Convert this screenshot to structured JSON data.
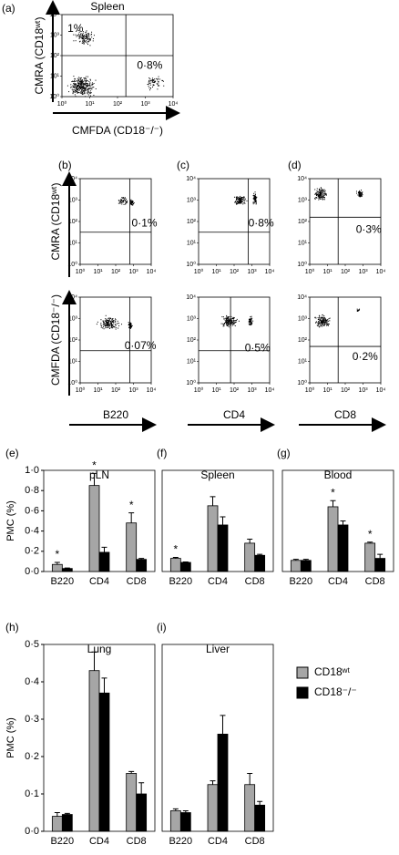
{
  "chart_data": [
    {
      "type": "flow",
      "label": "(a)",
      "title": "Spleen",
      "xlabel": "CMFDA (CD18⁻/⁻)",
      "ylabel": "CMRA (CD18ʷᵗ)",
      "log": true,
      "xlim": [
        1,
        10000
      ],
      "ylim": [
        1,
        10000
      ],
      "xticks": [
        {
          "value": 1,
          "label": "10⁰"
        },
        {
          "value": 10,
          "label": "10¹"
        },
        {
          "value": 100,
          "label": "10²"
        },
        {
          "value": 1000,
          "label": "10³"
        },
        {
          "value": 10000,
          "label": "10⁴"
        }
      ],
      "yticks": [
        {
          "value": 1,
          "label": "10⁰"
        },
        {
          "value": 10,
          "label": "10¹"
        },
        {
          "value": 100,
          "label": "10²"
        },
        {
          "value": 1000,
          "label": "10³"
        },
        {
          "value": 10000,
          "label": "10⁴"
        }
      ],
      "annotations": [
        "1%",
        "0·8%"
      ]
    },
    {
      "type": "flow",
      "label": "(b)",
      "ylabel": "CMRA (CD18ʷᵗ)",
      "log": true,
      "xlim": [
        1,
        10000
      ],
      "ylim": [
        1,
        10000
      ],
      "xticks": [
        {
          "value": 1,
          "label": "10⁰"
        },
        {
          "value": 10,
          "label": "10¹"
        },
        {
          "value": 100,
          "label": "10²"
        },
        {
          "value": 1000,
          "label": "10³"
        },
        {
          "value": 10000,
          "label": "10⁴"
        }
      ],
      "yticks": [
        {
          "value": 1,
          "label": "10⁰"
        },
        {
          "value": 10,
          "label": "10¹"
        },
        {
          "value": 100,
          "label": "10²"
        },
        {
          "value": 1000,
          "label": "10³"
        },
        {
          "value": 10000,
          "label": "10⁴"
        }
      ],
      "annotations": [
        "0·1%"
      ]
    },
    {
      "type": "flow",
      "label": "(c)",
      "log": true,
      "xlim": [
        1,
        10000
      ],
      "ylim": [
        1,
        10000
      ],
      "xticks": [
        {
          "value": 1,
          "label": "10⁰"
        },
        {
          "value": 10,
          "label": "10¹"
        },
        {
          "value": 100,
          "label": "10²"
        },
        {
          "value": 1000,
          "label": "10³"
        },
        {
          "value": 10000,
          "label": "10⁴"
        }
      ],
      "yticks": [
        {
          "value": 1,
          "label": "10⁰"
        },
        {
          "value": 10,
          "label": "10¹"
        },
        {
          "value": 100,
          "label": "10²"
        },
        {
          "value": 1000,
          "label": "10³"
        },
        {
          "value": 10000,
          "label": "10⁴"
        }
      ],
      "annotations": [
        "0·8%"
      ]
    },
    {
      "type": "flow",
      "label": "(d)",
      "log": true,
      "xlim": [
        1,
        10000
      ],
      "ylim": [
        1,
        10000
      ],
      "xticks": [
        {
          "value": 1,
          "label": "10⁰"
        },
        {
          "value": 10,
          "label": "10¹"
        },
        {
          "value": 100,
          "label": "10²"
        },
        {
          "value": 1000,
          "label": "10³"
        },
        {
          "value": 10000,
          "label": "10⁴"
        }
      ],
      "yticks": [
        {
          "value": 1,
          "label": "10⁰"
        },
        {
          "value": 10,
          "label": "10¹"
        },
        {
          "value": 100,
          "label": "10²"
        },
        {
          "value": 1000,
          "label": "10³"
        },
        {
          "value": 10000,
          "label": "10⁴"
        }
      ],
      "annotations": [
        "0·3%"
      ]
    },
    {
      "type": "flow",
      "ylabel": "CMFDA (CD18⁻/⁻)",
      "xlabel": "B220",
      "log": true,
      "xlim": [
        1,
        10000
      ],
      "ylim": [
        1,
        10000
      ],
      "xticks": [
        {
          "value": 1,
          "label": "10⁰"
        },
        {
          "value": 10,
          "label": "10¹"
        },
        {
          "value": 100,
          "label": "10²"
        },
        {
          "value": 1000,
          "label": "10³"
        },
        {
          "value": 10000,
          "label": "10⁴"
        }
      ],
      "yticks": [
        {
          "value": 1,
          "label": "10⁰"
        },
        {
          "value": 10,
          "label": "10¹"
        },
        {
          "value": 100,
          "label": "10²"
        },
        {
          "value": 1000,
          "label": "10³"
        },
        {
          "value": 10000,
          "label": "10⁴"
        }
      ],
      "annotations": [
        "0·07%"
      ]
    },
    {
      "type": "flow",
      "xlabel": "CD4",
      "log": true,
      "xlim": [
        1,
        10000
      ],
      "ylim": [
        1,
        10000
      ],
      "xticks": [
        {
          "value": 1,
          "label": "10⁰"
        },
        {
          "value": 10,
          "label": "10¹"
        },
        {
          "value": 100,
          "label": "10²"
        },
        {
          "value": 1000,
          "label": "10³"
        },
        {
          "value": 10000,
          "label": "10⁴"
        }
      ],
      "yticks": [
        {
          "value": 1,
          "label": "10⁰"
        },
        {
          "value": 10,
          "label": "10¹"
        },
        {
          "value": 100,
          "label": "10²"
        },
        {
          "value": 1000,
          "label": "10³"
        },
        {
          "value": 10000,
          "label": "10⁴"
        }
      ],
      "annotations": [
        "0·5%"
      ]
    },
    {
      "type": "flow",
      "xlabel": "CD8",
      "log": true,
      "xlim": [
        1,
        10000
      ],
      "ylim": [
        1,
        10000
      ],
      "xticks": [
        {
          "value": 1,
          "label": "10⁰"
        },
        {
          "value": 10,
          "label": "10¹"
        },
        {
          "value": 100,
          "label": "10²"
        },
        {
          "value": 1000,
          "label": "10³"
        },
        {
          "value": 10000,
          "label": "10⁴"
        }
      ],
      "yticks": [
        {
          "value": 1,
          "label": "10⁰"
        },
        {
          "value": 10,
          "label": "10¹"
        },
        {
          "value": 100,
          "label": "10²"
        },
        {
          "value": 1000,
          "label": "10³"
        },
        {
          "value": 10000,
          "label": "10⁴"
        }
      ],
      "annotations": [
        "0·2%"
      ]
    },
    {
      "type": "bar",
      "label": "(e)",
      "title": "pLN",
      "ylabel": "PMC (%)",
      "categories": [
        "B220",
        "CD4",
        "CD8"
      ],
      "ylim": [
        0,
        1
      ],
      "yticks": [
        {
          "value": 0,
          "label": "0·0"
        },
        {
          "value": 0.2,
          "label": "0·2"
        },
        {
          "value": 0.4,
          "label": "0·4"
        },
        {
          "value": 0.6,
          "label": "0·6"
        },
        {
          "value": 0.8,
          "label": "0·8"
        },
        {
          "value": 1,
          "label": "1·0"
        }
      ],
      "series": [
        {
          "name": "CD18ʷᵗ",
          "color": "#a6a6a6",
          "values": [
            0.07,
            0.85,
            0.48
          ],
          "errors": [
            0.02,
            0.12,
            0.1
          ]
        },
        {
          "name": "CD18⁻/⁻",
          "color": "#000000",
          "values": [
            0.03,
            0.19,
            0.12
          ],
          "errors": [
            0.005,
            0.05,
            0.01
          ]
        }
      ],
      "annotations": [
        {
          "text": "*",
          "category": "B220"
        },
        {
          "text": "*",
          "category": "CD4"
        },
        {
          "text": "*",
          "category": "CD8"
        }
      ]
    },
    {
      "type": "bar",
      "label": "(f)",
      "title": "Spleen",
      "categories": [
        "B220",
        "CD4",
        "CD8"
      ],
      "ylim": [
        0,
        1
      ],
      "series": [
        {
          "name": "CD18ʷᵗ",
          "color": "#a6a6a6",
          "values": [
            0.13,
            0.65,
            0.28
          ],
          "errors": [
            0.01,
            0.09,
            0.04
          ]
        },
        {
          "name": "CD18⁻/⁻",
          "color": "#000000",
          "values": [
            0.09,
            0.46,
            0.16
          ],
          "errors": [
            0.005,
            0.08,
            0.01
          ]
        }
      ],
      "annotations": [
        {
          "text": "*",
          "category": "B220"
        }
      ]
    },
    {
      "type": "bar",
      "label": "(g)",
      "title": "Blood",
      "categories": [
        "B220",
        "CD4",
        "CD8"
      ],
      "ylim": [
        0,
        1
      ],
      "series": [
        {
          "name": "CD18ʷᵗ",
          "color": "#a6a6a6",
          "values": [
            0.11,
            0.64,
            0.28
          ],
          "errors": [
            0.01,
            0.06,
            0.01
          ]
        },
        {
          "name": "CD18⁻/⁻",
          "color": "#000000",
          "values": [
            0.11,
            0.46,
            0.13
          ],
          "errors": [
            0.01,
            0.04,
            0.04
          ]
        }
      ],
      "annotations": [
        {
          "text": "*",
          "category": "CD4"
        },
        {
          "text": "*",
          "category": "CD8"
        }
      ]
    },
    {
      "type": "bar",
      "label": "(h)",
      "title": "Lung",
      "ylabel": "PMC (%)",
      "categories": [
        "B220",
        "CD4",
        "CD8"
      ],
      "ylim": [
        0,
        0.5
      ],
      "yticks": [
        {
          "value": 0,
          "label": "0·0"
        },
        {
          "value": 0.1,
          "label": "0·1"
        },
        {
          "value": 0.2,
          "label": "0·2"
        },
        {
          "value": 0.3,
          "label": "0·3"
        },
        {
          "value": 0.4,
          "label": "0·4"
        },
        {
          "value": 0.5,
          "label": "0·5"
        }
      ],
      "series": [
        {
          "name": "CD18ʷᵗ",
          "color": "#a6a6a6",
          "values": [
            0.04,
            0.43,
            0.155
          ],
          "errors": [
            0.01,
            0.05,
            0.005
          ]
        },
        {
          "name": "CD18⁻/⁻",
          "color": "#000000",
          "values": [
            0.045,
            0.37,
            0.1
          ],
          "errors": [
            0.003,
            0.04,
            0.03
          ]
        }
      ]
    },
    {
      "type": "bar",
      "label": "(i)",
      "title": "Liver",
      "categories": [
        "B220",
        "CD4",
        "CD8"
      ],
      "ylim": [
        0,
        0.5
      ],
      "legend": "right",
      "series": [
        {
          "name": "CD18ʷᵗ",
          "color": "#a6a6a6",
          "values": [
            0.055,
            0.125,
            0.125
          ],
          "errors": [
            0.005,
            0.01,
            0.03
          ]
        },
        {
          "name": "CD18⁻/⁻",
          "color": "#000000",
          "values": [
            0.05,
            0.26,
            0.07
          ],
          "errors": [
            0.005,
            0.05,
            0.01
          ]
        }
      ]
    }
  ]
}
